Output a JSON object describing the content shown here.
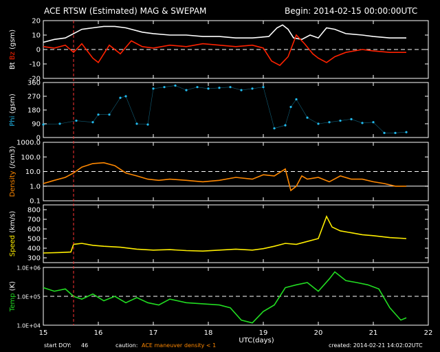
{
  "header": {
    "title": "ACE RTSW (Estimated) MAG & SWEPAM",
    "begin": "Begin: 2014-02-15 00:00:00UTC"
  },
  "footer": {
    "start_doy_label": "start DOY:",
    "start_doy": "46",
    "caution_label": "caution:",
    "maneuver": "ACE maneuver",
    "density_note": "density < 1",
    "created": "created: 2014-02-21 14:02:02UTC"
  },
  "colors": {
    "background": "#000000",
    "axes": "#ffffff",
    "bt": "#ffffff",
    "bz": "#ff2200",
    "phi": "#22bbee",
    "density": "#ff8800",
    "speed": "#ffee00",
    "temp": "#22dd22",
    "maneuver_line": "#ff3333",
    "caution_text": "#ff8800"
  },
  "chart_data": [
    {
      "type": "line",
      "panel": "mag",
      "ylabel_parts": [
        {
          "text": "Bt",
          "color": "#ffffff"
        },
        {
          "text": "Bz",
          "color": "#ff2200"
        },
        {
          "text": "(gsm)",
          "color": "#ffffff"
        }
      ],
      "ylim": [
        -20,
        20
      ],
      "yticks": [
        20,
        10,
        0,
        -10,
        -20
      ],
      "dashed_refs": [
        0
      ],
      "series": [
        {
          "name": "Bt",
          "color": "#ffffff",
          "x": [
            15.0,
            15.2,
            15.4,
            15.55,
            15.7,
            15.9,
            16.1,
            16.3,
            16.5,
            16.8,
            17.0,
            17.3,
            17.6,
            17.9,
            18.2,
            18.5,
            18.8,
            19.1,
            19.25,
            19.35,
            19.45,
            19.55,
            19.7,
            19.85,
            20.0,
            20.15,
            20.3,
            20.5,
            20.8,
            21.0,
            21.3,
            21.6
          ],
          "y": [
            5,
            7,
            8,
            11,
            14,
            15,
            16,
            16,
            15,
            12,
            11,
            10,
            10,
            9,
            9,
            8,
            8,
            9,
            15,
            17,
            14,
            8,
            7,
            10,
            8,
            15,
            14,
            11,
            10,
            9,
            8,
            8
          ]
        },
        {
          "name": "Bz",
          "color": "#ff2200",
          "x": [
            15.0,
            15.2,
            15.4,
            15.55,
            15.7,
            15.9,
            16.0,
            16.2,
            16.4,
            16.6,
            16.8,
            17.0,
            17.3,
            17.6,
            17.9,
            18.2,
            18.5,
            18.8,
            19.0,
            19.15,
            19.3,
            19.45,
            19.6,
            19.75,
            19.9,
            20.0,
            20.15,
            20.3,
            20.5,
            20.8,
            21.0,
            21.3,
            21.6
          ],
          "y": [
            2,
            1,
            3,
            -2,
            4,
            -6,
            -9,
            3,
            -3,
            6,
            2,
            1,
            3,
            2,
            4,
            3,
            2,
            3,
            1,
            -8,
            -11,
            -5,
            10,
            4,
            -3,
            -6,
            -9,
            -5,
            -2,
            0,
            -1,
            -2,
            -2
          ]
        }
      ]
    },
    {
      "type": "scatter",
      "panel": "phi",
      "ylabel_parts": [
        {
          "text": "Phi",
          "color": "#22bbee"
        },
        {
          "text": "(gsm)",
          "color": "#ffffff"
        }
      ],
      "ylim": [
        0,
        360
      ],
      "yticks": [
        360,
        270,
        180,
        90,
        0
      ],
      "dashed_refs": [],
      "series": [
        {
          "name": "Phi",
          "color": "#22bbee",
          "x": [
            15.0,
            15.3,
            15.6,
            15.9,
            16.0,
            16.2,
            16.4,
            16.5,
            16.7,
            16.9,
            17.0,
            17.2,
            17.4,
            17.6,
            17.8,
            18.0,
            18.2,
            18.4,
            18.6,
            18.8,
            19.0,
            19.2,
            19.4,
            19.5,
            19.6,
            19.8,
            20.0,
            20.2,
            20.4,
            20.6,
            20.8,
            21.0,
            21.2,
            21.4,
            21.6
          ],
          "y": [
            85,
            90,
            110,
            100,
            150,
            150,
            260,
            270,
            90,
            85,
            320,
            330,
            340,
            310,
            330,
            320,
            325,
            330,
            310,
            320,
            330,
            60,
            80,
            200,
            250,
            130,
            90,
            100,
            110,
            120,
            95,
            100,
            30,
            30,
            35
          ]
        }
      ]
    },
    {
      "type": "line",
      "panel": "density",
      "ylabel_parts": [
        {
          "text": "Density",
          "color": "#ff8800"
        },
        {
          "text": "(/cm3)",
          "color": "#ffffff"
        }
      ],
      "yscale": "log",
      "ylim": [
        0.1,
        1000
      ],
      "yticks": [
        1000,
        100,
        10,
        1,
        0.1
      ],
      "ytick_labels": [
        "1000.0",
        "100.0",
        "10.0",
        "1.0",
        "0.1"
      ],
      "dashed_refs": [
        10
      ],
      "solid_refs": [
        1
      ],
      "series": [
        {
          "name": "Density",
          "color": "#ff8800",
          "x": [
            15.0,
            15.2,
            15.4,
            15.55,
            15.7,
            15.9,
            16.1,
            16.3,
            16.5,
            16.7,
            16.9,
            17.1,
            17.3,
            17.6,
            17.9,
            18.2,
            18.5,
            18.8,
            19.0,
            19.2,
            19.4,
            19.5,
            19.6,
            19.7,
            19.8,
            20.0,
            20.2,
            20.4,
            20.6,
            20.8,
            21.0,
            21.2,
            21.4,
            21.6
          ],
          "y": [
            1.5,
            2.5,
            4,
            8,
            20,
            35,
            40,
            25,
            8,
            5,
            3,
            2.5,
            3,
            2.5,
            2,
            2.5,
            4,
            3,
            6,
            5,
            15,
            0.5,
            1,
            5,
            3,
            4,
            2,
            5,
            3,
            3,
            2,
            1.5,
            1,
            1
          ]
        }
      ]
    },
    {
      "type": "line",
      "panel": "speed",
      "ylabel_parts": [
        {
          "text": "Speed",
          "color": "#ffee00"
        },
        {
          "text": "(km/s)",
          "color": "#ffffff"
        }
      ],
      "ylim": [
        250,
        850
      ],
      "yticks": [
        800,
        700,
        600,
        500,
        400,
        300
      ],
      "dashed_refs": [],
      "series": [
        {
          "name": "Speed",
          "color": "#ffee00",
          "x": [
            15.0,
            15.3,
            15.5,
            15.55,
            15.7,
            15.9,
            16.1,
            16.4,
            16.7,
            17.0,
            17.3,
            17.6,
            17.9,
            18.2,
            18.5,
            18.8,
            19.0,
            19.2,
            19.4,
            19.6,
            19.8,
            20.0,
            20.15,
            20.25,
            20.4,
            20.6,
            20.8,
            21.0,
            21.3,
            21.6
          ],
          "y": [
            350,
            355,
            360,
            440,
            450,
            430,
            420,
            410,
            390,
            380,
            385,
            375,
            370,
            380,
            390,
            380,
            395,
            420,
            450,
            440,
            470,
            500,
            730,
            620,
            580,
            560,
            540,
            530,
            510,
            500
          ]
        }
      ]
    },
    {
      "type": "line",
      "panel": "temp",
      "ylabel_parts": [
        {
          "text": "Temp",
          "color": "#22dd22"
        },
        {
          "text": "(K)",
          "color": "#ffffff"
        }
      ],
      "yscale": "log",
      "ylim": [
        10000,
        1000000
      ],
      "yticks": [
        1000000,
        100000,
        10000
      ],
      "ytick_labels": [
        "1.0E+06",
        "1.0E+05",
        "1.0E+04"
      ],
      "dashed_refs": [
        100000
      ],
      "series": [
        {
          "name": "Temp",
          "color": "#22dd22",
          "x": [
            15.0,
            15.2,
            15.4,
            15.55,
            15.7,
            15.9,
            16.1,
            16.3,
            16.5,
            16.7,
            16.9,
            17.1,
            17.3,
            17.6,
            17.9,
            18.2,
            18.4,
            18.6,
            18.8,
            19.0,
            19.2,
            19.4,
            19.6,
            19.8,
            20.0,
            20.2,
            20.3,
            20.5,
            20.7,
            20.9,
            21.1,
            21.3,
            21.5,
            21.6
          ],
          "y": [
            200000,
            150000,
            180000,
            100000,
            80000,
            120000,
            70000,
            100000,
            60000,
            90000,
            60000,
            50000,
            80000,
            60000,
            55000,
            50000,
            40000,
            15000,
            12000,
            30000,
            50000,
            200000,
            250000,
            300000,
            150000,
            400000,
            700000,
            350000,
            300000,
            250000,
            180000,
            40000,
            15000,
            18000
          ]
        }
      ]
    }
  ],
  "x_axis": {
    "label": "UTC(days)",
    "xlim": [
      15,
      22
    ],
    "ticks": [
      15,
      16,
      17,
      18,
      19,
      20,
      21,
      22
    ],
    "maneuver_x": 15.55
  }
}
